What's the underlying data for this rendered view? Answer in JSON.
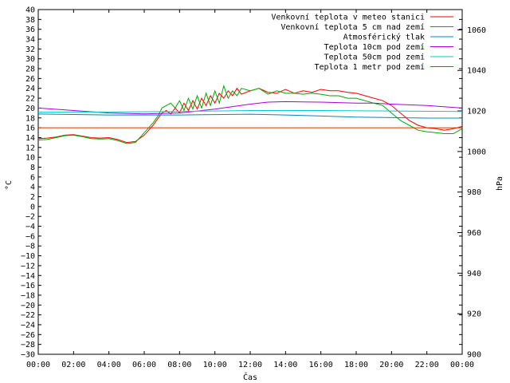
{
  "chart_data": {
    "type": "line",
    "xlabel": "Čas",
    "ylabel": "°C",
    "y2label": "hPa",
    "xlim": [
      0,
      24
    ],
    "ylim": [
      -30,
      40
    ],
    "y2lim": [
      900,
      1070
    ],
    "x_ticks": [
      "00:00",
      "02:00",
      "04:00",
      "06:00",
      "08:00",
      "10:00",
      "12:00",
      "14:00",
      "16:00",
      "18:00",
      "20:00",
      "22:00",
      "00:00"
    ],
    "y_ticks": [
      40,
      38,
      36,
      34,
      32,
      30,
      28,
      26,
      24,
      22,
      20,
      18,
      16,
      14,
      12,
      10,
      8,
      6,
      4,
      2,
      0,
      -2,
      -4,
      -6,
      -8,
      -10,
      -12,
      -14,
      -16,
      -18,
      -20,
      -22,
      -24,
      -26,
      -28,
      -30
    ],
    "y_tick_labels": [
      "40",
      "38",
      "36",
      "34",
      "32",
      "30",
      "28",
      "26",
      "24",
      "22",
      "20",
      "18",
      "16",
      "14",
      "12",
      "10",
      "8",
      "6",
      "4",
      "2",
      "0",
      "−2",
      "−4",
      "−6",
      "−8",
      "−10",
      "−12",
      "−14",
      "−16",
      "−18",
      "−20",
      "−22",
      "−24",
      "−26",
      "−28",
      "−30"
    ],
    "y2_ticks": [
      1060,
      1040,
      1020,
      1000,
      980,
      960,
      940,
      920,
      900
    ],
    "grid": false,
    "legend_position": "top-right",
    "series": [
      {
        "name": "Venkovní teplota v meteo stanici",
        "color": "#ff0000",
        "axis": "y",
        "x": [
          0,
          0.5,
          1,
          1.5,
          2,
          2.5,
          3,
          3.5,
          4,
          4.5,
          5,
          5.5,
          6,
          6.5,
          6.8,
          7.0,
          7.25,
          7.5,
          7.75,
          8.0,
          8.25,
          8.5,
          8.75,
          9.0,
          9.25,
          9.5,
          9.75,
          10.0,
          10.25,
          10.5,
          10.75,
          11.0,
          11.25,
          11.5,
          12,
          12.5,
          13,
          13.5,
          14,
          14.5,
          15,
          15.5,
          16,
          16.5,
          17,
          17.5,
          18,
          18.5,
          19,
          19.5,
          20,
          20.5,
          21,
          21.5,
          22,
          22.5,
          23,
          23.5,
          24
        ],
        "y": [
          13.8,
          13.9,
          14.1,
          14.5,
          14.6,
          14.3,
          14.0,
          13.9,
          14.0,
          13.6,
          13.0,
          13.2,
          14.5,
          16.5,
          18.0,
          19.0,
          19.5,
          18.8,
          20.0,
          19.0,
          21.0,
          19.5,
          21.5,
          19.8,
          22.0,
          20.5,
          22.5,
          21.0,
          23.0,
          22.0,
          23.5,
          22.5,
          24.0,
          22.8,
          23.5,
          24.0,
          23.2,
          23.0,
          23.8,
          23.0,
          23.5,
          23.2,
          23.8,
          23.5,
          23.5,
          23.2,
          23.0,
          22.5,
          22.0,
          21.5,
          20.5,
          19.0,
          17.5,
          16.5,
          16.0,
          15.8,
          15.5,
          15.8,
          16.3
        ]
      },
      {
        "name": "Venkovní teplota 5 cm nad zemí",
        "color": "#00aa00",
        "axis": "y",
        "x": [
          0,
          0.5,
          1,
          1.5,
          2,
          2.5,
          3,
          3.5,
          4,
          4.5,
          5,
          5.5,
          6,
          6.5,
          6.8,
          7.0,
          7.25,
          7.5,
          7.75,
          8.0,
          8.25,
          8.5,
          8.75,
          9.0,
          9.25,
          9.5,
          9.75,
          10.0,
          10.25,
          10.5,
          10.75,
          11.0,
          11.25,
          11.5,
          12,
          12.5,
          13,
          13.5,
          14,
          14.5,
          15,
          15.5,
          16,
          16.5,
          17,
          17.5,
          18,
          18.5,
          19,
          19.5,
          20,
          20.5,
          21,
          21.5,
          22,
          22.5,
          23,
          23.5,
          24
        ],
        "y": [
          13.5,
          13.6,
          14.0,
          14.4,
          14.5,
          14.2,
          13.8,
          13.7,
          13.8,
          13.4,
          12.8,
          13.0,
          15.0,
          17.0,
          18.5,
          20.0,
          20.5,
          21.0,
          20.0,
          21.5,
          19.5,
          22.0,
          19.8,
          22.5,
          20.0,
          23.0,
          20.5,
          23.5,
          21.0,
          24.5,
          22.0,
          23.5,
          22.5,
          24.0,
          23.5,
          24.0,
          22.8,
          23.5,
          23.0,
          23.0,
          22.8,
          23.0,
          22.8,
          22.5,
          22.5,
          22.0,
          22.0,
          21.5,
          21.0,
          20.5,
          19.0,
          17.5,
          16.5,
          15.5,
          15.2,
          15.0,
          14.8,
          14.8,
          15.8
        ]
      },
      {
        "name": "Atmosférický tlak",
        "color": "#0088bb",
        "axis": "y2",
        "x": [
          0,
          4,
          8,
          10,
          12,
          14,
          16,
          18,
          20,
          22,
          24
        ],
        "y": [
          1018.5,
          1018.0,
          1018.0,
          1018.2,
          1018.4,
          1018.0,
          1017.5,
          1017.0,
          1016.7,
          1016.5,
          1016.5
        ]
      },
      {
        "name": "Teplota 10cm pod zemí",
        "color": "#aa00dd",
        "axis": "y",
        "x": [
          0,
          2,
          4,
          6,
          8,
          10,
          12,
          13,
          14,
          16,
          18,
          19,
          20,
          22,
          24
        ],
        "y": [
          20.0,
          19.5,
          19.0,
          18.8,
          19.0,
          19.8,
          20.8,
          21.2,
          21.3,
          21.2,
          21.0,
          21.0,
          20.8,
          20.5,
          20.0
        ]
      },
      {
        "name": "Teplota 50cm pod zemí",
        "color": "#00cccc",
        "axis": "y",
        "x": [
          0,
          4,
          8,
          10,
          12,
          16,
          20,
          24
        ],
        "y": [
          19.2,
          19.2,
          19.3,
          19.4,
          19.5,
          19.5,
          19.4,
          19.3
        ]
      },
      {
        "name": "Teplota 1 metr pod zemí",
        "color": "#dd3300",
        "axis": "y",
        "x": [
          0,
          24
        ],
        "y": [
          16.0,
          16.0
        ]
      }
    ]
  }
}
